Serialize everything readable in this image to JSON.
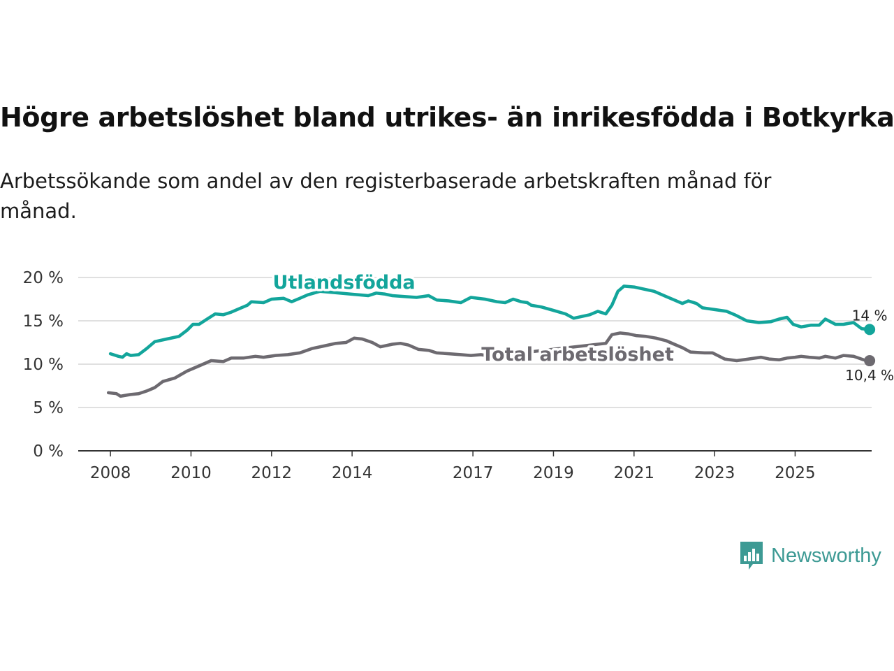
{
  "title": "Högre arbetslöshet bland utrikes- än inrikesfödda i Botkyrka",
  "subtitle": "Arbetssökande som andel av den registerbaserade arbetskraften månad för månad.",
  "brand": {
    "name": "Newsworthy",
    "icon": "newsworthy-logo-icon",
    "color": "#3d9a94"
  },
  "chart_data": {
    "type": "line",
    "title": "Högre arbetslöshet bland utrikes- än inrikesfödda i Botkyrka",
    "xlabel": "",
    "ylabel": "",
    "ylim": [
      0,
      20
    ],
    "xlim": [
      2007.2,
      2026.9
    ],
    "grid": true,
    "y_ticks": [
      0,
      5,
      10,
      15,
      20
    ],
    "y_tick_labels": [
      "0 %",
      "5 %",
      "10 %",
      "15 %",
      "20 %"
    ],
    "x_ticks": [
      2008,
      2010,
      2012,
      2014,
      2017,
      2019,
      2021,
      2023,
      2025
    ],
    "x_tick_labels": [
      "2008",
      "2010",
      "2012",
      "2014",
      "2017",
      "2019",
      "2021",
      "2023",
      "2025"
    ],
    "series": [
      {
        "name": "Utlandsfödda",
        "color": "#13a59b",
        "end_label": "14 %",
        "points": [
          [
            2008.0,
            11.2
          ],
          [
            2008.2,
            10.9
          ],
          [
            2008.3,
            10.8
          ],
          [
            2008.4,
            11.2
          ],
          [
            2008.5,
            11.0
          ],
          [
            2008.7,
            11.1
          ],
          [
            2008.9,
            11.8
          ],
          [
            2009.1,
            12.6
          ],
          [
            2009.4,
            12.9
          ],
          [
            2009.7,
            13.2
          ],
          [
            2009.9,
            13.9
          ],
          [
            2010.05,
            14.6
          ],
          [
            2010.2,
            14.6
          ],
          [
            2010.4,
            15.2
          ],
          [
            2010.6,
            15.8
          ],
          [
            2010.8,
            15.7
          ],
          [
            2011.0,
            16.0
          ],
          [
            2011.2,
            16.4
          ],
          [
            2011.4,
            16.8
          ],
          [
            2011.5,
            17.2
          ],
          [
            2011.8,
            17.1
          ],
          [
            2012.0,
            17.5
          ],
          [
            2012.3,
            17.6
          ],
          [
            2012.5,
            17.2
          ],
          [
            2012.7,
            17.6
          ],
          [
            2012.9,
            18.0
          ],
          [
            2013.2,
            18.4
          ],
          [
            2014.4,
            17.9
          ],
          [
            2014.6,
            18.2
          ],
          [
            2014.8,
            18.1
          ],
          [
            2015.0,
            17.9
          ],
          [
            2015.3,
            17.8
          ],
          [
            2015.6,
            17.7
          ],
          [
            2015.9,
            17.9
          ],
          [
            2016.1,
            17.4
          ],
          [
            2016.4,
            17.3
          ],
          [
            2016.7,
            17.1
          ],
          [
            2016.95,
            17.7
          ],
          [
            2017.3,
            17.5
          ],
          [
            2017.6,
            17.2
          ],
          [
            2017.8,
            17.1
          ],
          [
            2018.0,
            17.5
          ],
          [
            2018.2,
            17.2
          ],
          [
            2018.35,
            17.1
          ],
          [
            2018.45,
            16.8
          ],
          [
            2018.7,
            16.6
          ],
          [
            2019.0,
            16.2
          ],
          [
            2019.3,
            15.8
          ],
          [
            2019.5,
            15.3
          ],
          [
            2019.7,
            15.5
          ],
          [
            2019.9,
            15.7
          ],
          [
            2020.1,
            16.1
          ],
          [
            2020.3,
            15.8
          ],
          [
            2020.45,
            16.8
          ],
          [
            2020.6,
            18.4
          ],
          [
            2020.75,
            19.0
          ],
          [
            2021.0,
            18.9
          ],
          [
            2021.2,
            18.7
          ],
          [
            2021.5,
            18.4
          ],
          [
            2021.8,
            17.8
          ],
          [
            2022.0,
            17.4
          ],
          [
            2022.2,
            17.0
          ],
          [
            2022.35,
            17.3
          ],
          [
            2022.55,
            17.0
          ],
          [
            2022.7,
            16.5
          ],
          [
            2023.0,
            16.3
          ],
          [
            2023.3,
            16.1
          ],
          [
            2023.5,
            15.7
          ],
          [
            2023.8,
            15.0
          ],
          [
            2024.1,
            14.8
          ],
          [
            2024.4,
            14.9
          ],
          [
            2024.6,
            15.2
          ],
          [
            2024.8,
            15.4
          ],
          [
            2024.95,
            14.6
          ],
          [
            2025.15,
            14.3
          ],
          [
            2025.4,
            14.5
          ],
          [
            2025.6,
            14.5
          ],
          [
            2025.75,
            15.2
          ],
          [
            2026.0,
            14.6
          ],
          [
            2026.2,
            14.6
          ],
          [
            2026.45,
            14.8
          ],
          [
            2026.65,
            14.1
          ],
          [
            2026.85,
            14.0
          ]
        ]
      },
      {
        "name": "Total arbetslöshet",
        "color": "#6d6a70",
        "end_label": "10,4 %",
        "points": [
          [
            2007.95,
            6.7
          ],
          [
            2008.15,
            6.6
          ],
          [
            2008.25,
            6.3
          ],
          [
            2008.5,
            6.5
          ],
          [
            2008.7,
            6.6
          ],
          [
            2008.9,
            6.9
          ],
          [
            2009.1,
            7.3
          ],
          [
            2009.3,
            8.0
          ],
          [
            2009.6,
            8.4
          ],
          [
            2009.9,
            9.2
          ],
          [
            2010.1,
            9.6
          ],
          [
            2010.3,
            10.0
          ],
          [
            2010.5,
            10.4
          ],
          [
            2010.8,
            10.3
          ],
          [
            2011.0,
            10.7
          ],
          [
            2011.3,
            10.7
          ],
          [
            2011.6,
            10.9
          ],
          [
            2011.8,
            10.8
          ],
          [
            2012.1,
            11.0
          ],
          [
            2012.4,
            11.1
          ],
          [
            2012.7,
            11.3
          ],
          [
            2013.0,
            11.8
          ],
          [
            2013.3,
            12.1
          ],
          [
            2013.6,
            12.4
          ],
          [
            2013.85,
            12.5
          ],
          [
            2014.05,
            13.0
          ],
          [
            2014.25,
            12.9
          ],
          [
            2014.5,
            12.5
          ],
          [
            2014.7,
            12.0
          ],
          [
            2015.0,
            12.3
          ],
          [
            2015.2,
            12.4
          ],
          [
            2015.4,
            12.2
          ],
          [
            2015.65,
            11.7
          ],
          [
            2015.9,
            11.6
          ],
          [
            2016.1,
            11.3
          ],
          [
            2016.4,
            11.2
          ],
          [
            2016.7,
            11.1
          ],
          [
            2016.95,
            11.0
          ],
          [
            2017.2,
            11.1
          ],
          [
            2017.45,
            10.9
          ],
          [
            2020.3,
            12.4
          ],
          [
            2020.45,
            13.4
          ],
          [
            2020.65,
            13.6
          ],
          [
            2020.85,
            13.5
          ],
          [
            2021.05,
            13.3
          ],
          [
            2021.3,
            13.2
          ],
          [
            2021.55,
            13.0
          ],
          [
            2021.8,
            12.7
          ],
          [
            2022.0,
            12.3
          ],
          [
            2022.2,
            11.9
          ],
          [
            2022.4,
            11.4
          ],
          [
            2022.75,
            11.3
          ],
          [
            2022.95,
            11.3
          ],
          [
            2023.25,
            10.6
          ],
          [
            2023.55,
            10.4
          ],
          [
            2023.85,
            10.6
          ],
          [
            2024.15,
            10.8
          ],
          [
            2024.35,
            10.6
          ],
          [
            2024.6,
            10.5
          ],
          [
            2024.8,
            10.7
          ],
          [
            2025.0,
            10.8
          ],
          [
            2025.15,
            10.9
          ],
          [
            2025.35,
            10.8
          ],
          [
            2025.6,
            10.7
          ],
          [
            2025.75,
            10.9
          ],
          [
            2026.0,
            10.7
          ],
          [
            2026.2,
            11.0
          ],
          [
            2026.45,
            10.9
          ],
          [
            2026.7,
            10.5
          ],
          [
            2026.85,
            10.4
          ]
        ]
      }
    ]
  }
}
